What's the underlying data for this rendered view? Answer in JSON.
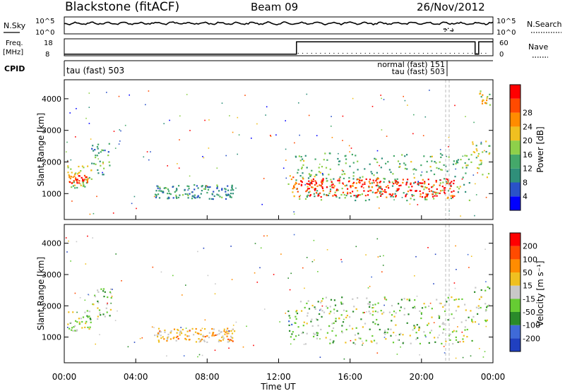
{
  "header": {
    "site": "Blackstone (fitACF)",
    "beam": "Beam 09",
    "date": "26/Nov/2012"
  },
  "chart_data": [
    {
      "type": "line",
      "name": "noise-panel",
      "left_label": "N.Sky",
      "right_label": "N.Search",
      "left_ticks": [
        "10^5",
        "10^0"
      ],
      "right_ticks": [
        "10^5",
        "10^0"
      ],
      "x_range": [
        0,
        24
      ]
    },
    {
      "type": "line",
      "name": "freq-panel",
      "left_label_line1": "Freq.",
      "left_label_line2": "[MHz]",
      "right_label": "Nave",
      "left_ticks": [
        "18",
        "8"
      ],
      "right_ticks": [
        "60",
        "0"
      ],
      "freq_steps": [
        [
          0,
          9
        ],
        [
          13.0,
          9
        ],
        [
          13.0,
          17
        ],
        [
          23.0,
          17
        ],
        [
          23.0,
          9
        ],
        [
          23.2,
          9
        ],
        [
          23.2,
          17
        ],
        [
          24,
          17
        ]
      ],
      "nave_steps": [
        [
          0,
          0
        ],
        [
          13.0,
          0
        ],
        [
          13.0,
          2
        ],
        [
          23.0,
          2
        ],
        [
          23.2,
          2
        ],
        [
          24,
          2
        ]
      ]
    },
    {
      "type": "table",
      "name": "cpid-panel",
      "label": "CPID",
      "entries": [
        {
          "text": "tau (fast) 503",
          "hour": 0.1
        },
        {
          "text": "normal (fast) 151",
          "hour": 21.5
        },
        {
          "text": "tau (fast) 503",
          "hour": 21.5
        }
      ]
    },
    {
      "type": "heatmap",
      "name": "power",
      "ylabel": "Slant Range [km]",
      "yticks": [
        1000,
        2000,
        3000,
        4000
      ],
      "ylim": [
        180,
        4600
      ],
      "colorbar_label": "Power [dB]",
      "colorbar_ticks": [
        "4",
        "8",
        "12",
        "16",
        "20",
        "24",
        "28"
      ],
      "colorbar_colors": [
        "#0000ff",
        "#2a52c8",
        "#2f8f7a",
        "#44a86a",
        "#8ed04a",
        "#f0c020",
        "#ff8c00",
        "#ff4a00",
        "#ff0000"
      ],
      "blocks": [
        {
          "t0": 0.1,
          "t1": 1.5,
          "r0": 1200,
          "r1": 1900,
          "level": 0.55
        },
        {
          "t0": 0.2,
          "t1": 1.3,
          "r0": 1350,
          "r1": 1600,
          "level": 0.85
        },
        {
          "t0": 1.5,
          "t1": 2.6,
          "r0": 1600,
          "r1": 2600,
          "level": 0.35
        },
        {
          "t0": 5.0,
          "t1": 9.5,
          "r0": 850,
          "r1": 1300,
          "level": 0.3
        },
        {
          "t0": 12.5,
          "t1": 13.0,
          "r0": 900,
          "r1": 1600,
          "level": 0.7
        },
        {
          "t0": 12.9,
          "t1": 22.8,
          "r0": 800,
          "r1": 2300,
          "level": 0.4
        },
        {
          "t0": 13.0,
          "t1": 21.8,
          "r0": 900,
          "r1": 1500,
          "level": 0.9
        },
        {
          "t0": 22.8,
          "t1": 23.8,
          "r0": 1500,
          "r1": 2700,
          "level": 0.5
        },
        {
          "t0": 23.2,
          "t1": 23.8,
          "r0": 3800,
          "r1": 4300,
          "level": 0.6
        }
      ]
    },
    {
      "type": "heatmap",
      "name": "velocity",
      "ylabel": "Slant Range [km]",
      "yticks": [
        1000,
        2000,
        3000,
        4000
      ],
      "ylim": [
        180,
        4600
      ],
      "colorbar_label": "Velocity [m s⁻¹]",
      "colorbar_ticks": [
        "200",
        "100",
        "50",
        "15",
        "-15",
        "-50",
        "-100",
        "-200"
      ],
      "colorbar_colors": [
        "#2040c0",
        "#3f6ad8",
        "#2a8a2a",
        "#66cc33",
        "#c8c8c8",
        "#f0c020",
        "#ff8c00",
        "#ff4a00",
        "#ff0000"
      ],
      "blocks": [
        {
          "t0": 0.1,
          "t1": 1.5,
          "r0": 1200,
          "r1": 1900,
          "level": 0.45
        },
        {
          "t0": 1.5,
          "t1": 2.6,
          "r0": 1600,
          "r1": 2600,
          "level": 0.45
        },
        {
          "t0": 5.0,
          "t1": 9.5,
          "r0": 850,
          "r1": 1300,
          "level": 0.62
        },
        {
          "t0": 12.5,
          "t1": 13.0,
          "r0": 900,
          "r1": 1900,
          "level": 0.3
        },
        {
          "t0": 12.9,
          "t1": 22.8,
          "r0": 800,
          "r1": 2300,
          "level": 0.45
        },
        {
          "t0": 22.8,
          "t1": 23.8,
          "r0": 1500,
          "r1": 2700,
          "level": 0.45
        }
      ]
    }
  ],
  "x_axis": {
    "label": "Time UT",
    "ticks": [
      "00:00",
      "04:00",
      "08:00",
      "12:00",
      "16:00",
      "20:00",
      "00:00"
    ],
    "range": [
      0,
      24
    ]
  }
}
